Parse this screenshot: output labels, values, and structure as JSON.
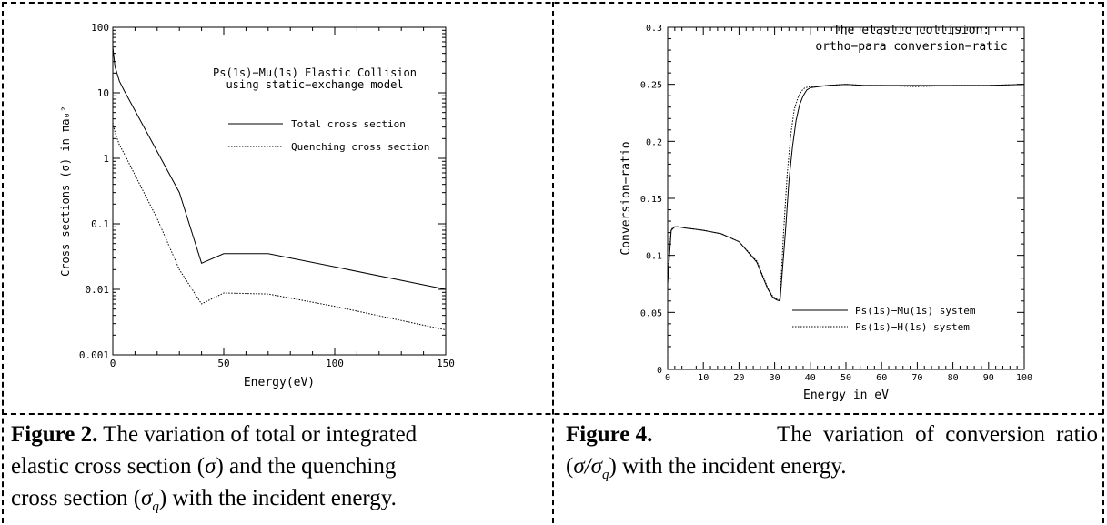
{
  "chart_data": [
    {
      "type": "line",
      "title": [
        "Ps(1s)−Mu(1s) Elastic Collision",
        "using static−exchange model"
      ],
      "xlabel": "Energy(eV)",
      "ylabel": "Cross sections (σ) in πa₀²",
      "xlim": [
        0,
        150
      ],
      "ylim": [
        0.001,
        100
      ],
      "yscale": "log",
      "x_ticks": [
        "0",
        "50",
        "100",
        "150"
      ],
      "y_ticks": [
        "0.001",
        "0.01",
        "0.1",
        "1",
        "10",
        "100"
      ],
      "legend_position": "top-right",
      "series": [
        {
          "name": "Total cross section",
          "style": "solid",
          "x": [
            0,
            1,
            3,
            5,
            30,
            40,
            50,
            70,
            100,
            150
          ],
          "y": [
            50,
            25,
            15,
            11,
            0.3,
            0.025,
            0.035,
            0.035,
            0.022,
            0.01
          ]
        },
        {
          "name": "Quenching cross section",
          "style": "dotted",
          "x": [
            0,
            1,
            3,
            5,
            20,
            30,
            40,
            50,
            70,
            100,
            150
          ],
          "y": [
            3.5,
            2.5,
            1.6,
            1.2,
            0.12,
            0.02,
            0.006,
            0.0088,
            0.0085,
            0.0055,
            0.0024
          ]
        }
      ]
    },
    {
      "type": "line",
      "title": [
        "The elastic collision:",
        "ortho−para conversion−ratic"
      ],
      "xlabel": "Energy in eV",
      "ylabel": "Conversion−ratio",
      "xlim": [
        0,
        100
      ],
      "ylim": [
        0,
        0.3
      ],
      "x_ticks": [
        "0",
        "10",
        "20",
        "30",
        "40",
        "50",
        "60",
        "70",
        "80",
        "90",
        "100"
      ],
      "y_ticks": [
        "0",
        "0.05",
        "0.1",
        "0.15",
        "0.2",
        "0.25",
        "0.3"
      ],
      "legend_position": "bottom-right",
      "series": [
        {
          "name": "Ps(1s)−Mu(1s) system",
          "style": "solid",
          "x": [
            0,
            0.5,
            1,
            2,
            3,
            5,
            10,
            15,
            20,
            25,
            28,
            29.5,
            30.5,
            31.5,
            33,
            34,
            35,
            36,
            37,
            38,
            39,
            40,
            45,
            50,
            55,
            60,
            70,
            80,
            90,
            100
          ],
          "y": [
            0.075,
            0.1,
            0.122,
            0.125,
            0.125,
            0.124,
            0.122,
            0.119,
            0.112,
            0.094,
            0.071,
            0.063,
            0.061,
            0.06,
            0.12,
            0.165,
            0.195,
            0.218,
            0.232,
            0.24,
            0.245,
            0.247,
            0.249,
            0.25,
            0.249,
            0.249,
            0.249,
            0.249,
            0.249,
            0.25
          ]
        },
        {
          "name": "Ps(1s)−H(1s) system",
          "style": "dotted",
          "x": [
            0,
            0.5,
            1,
            2,
            3,
            5,
            10,
            15,
            20,
            25,
            28,
            29.5,
            30.5,
            31.5,
            32.5,
            33.5,
            34.5,
            35.5,
            36.5,
            37.5,
            38.5,
            40,
            45,
            50,
            55,
            60,
            70,
            80,
            90,
            100
          ],
          "y": [
            0.078,
            0.105,
            0.123,
            0.125,
            0.125,
            0.124,
            0.122,
            0.119,
            0.112,
            0.095,
            0.072,
            0.064,
            0.062,
            0.061,
            0.12,
            0.17,
            0.205,
            0.228,
            0.238,
            0.244,
            0.247,
            0.248,
            0.249,
            0.25,
            0.249,
            0.249,
            0.248,
            0.249,
            0.249,
            0.25
          ]
        }
      ]
    }
  ],
  "captions": {
    "fig2": {
      "label": "Figure 2.",
      "line1": " The variation of total or integrated",
      "line2a": "elastic cross section (",
      "sigma": "σ",
      "line2b": ") and the quenching",
      "line3a": "cross section (",
      "sigma_q": "σ",
      "sub_q": "q",
      "line3b": ") with the incident energy."
    },
    "fig4": {
      "label": "Figure 4.",
      "line1": " The variation of conversion ratio",
      "line2a": "(",
      "sigma": "σ",
      "slash": "/",
      "sigma_q": "σ",
      "sub_q": "q",
      "line2b": ") with the incident energy."
    }
  }
}
